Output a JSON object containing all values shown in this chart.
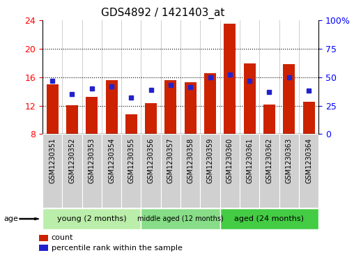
{
  "title": "GDS4892 / 1421403_at",
  "samples": [
    "GSM1230351",
    "GSM1230352",
    "GSM1230353",
    "GSM1230354",
    "GSM1230355",
    "GSM1230356",
    "GSM1230357",
    "GSM1230358",
    "GSM1230359",
    "GSM1230360",
    "GSM1230361",
    "GSM1230362",
    "GSM1230363",
    "GSM1230364"
  ],
  "count_values": [
    15.0,
    12.1,
    13.2,
    15.6,
    10.8,
    12.3,
    15.6,
    15.3,
    16.6,
    23.5,
    17.9,
    12.2,
    17.8,
    12.5
  ],
  "percentile_values": [
    47,
    35,
    40,
    42,
    32,
    39,
    43,
    41,
    50,
    52,
    47,
    37,
    50,
    38
  ],
  "ylim_left": [
    8,
    24
  ],
  "ylim_right": [
    0,
    100
  ],
  "yticks_left": [
    8,
    12,
    16,
    20,
    24
  ],
  "yticks_right": [
    0,
    25,
    50,
    75,
    100
  ],
  "bar_color": "#cc2200",
  "dot_color": "#2222cc",
  "bar_width": 0.6,
  "groups": [
    {
      "label": "young (2 months)",
      "start": 0,
      "end": 4
    },
    {
      "label": "middle aged (12 months)",
      "start": 5,
      "end": 8
    },
    {
      "label": "aged (24 months)",
      "start": 9,
      "end": 13
    }
  ],
  "group_colors": [
    "#bbeeaa",
    "#88dd88",
    "#44cc44"
  ],
  "age_label": "age",
  "legend_count_label": "count",
  "legend_percentile_label": "percentile rank within the sample",
  "bg_color": "#ffffff",
  "sample_band_color": "#d0d0d0",
  "title_fontsize": 11,
  "sample_fontsize": 7,
  "group_fontsize": 8
}
